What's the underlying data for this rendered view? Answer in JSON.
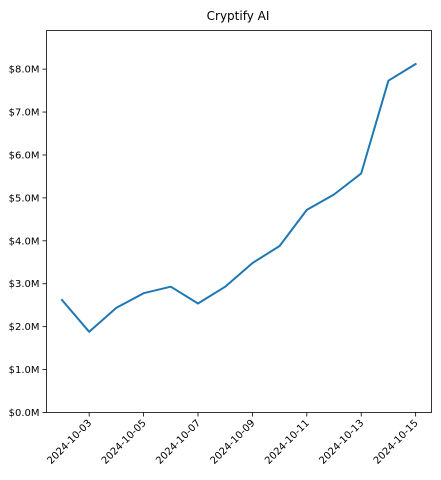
{
  "chart_data": {
    "type": "line",
    "title": "Cryptify AI",
    "xlabel": "",
    "ylabel": "",
    "x": [
      "2024-10-02",
      "2024-10-03",
      "2024-10-04",
      "2024-10-05",
      "2024-10-06",
      "2024-10-07",
      "2024-10-08",
      "2024-10-09",
      "2024-10-10",
      "2024-10-11",
      "2024-10-12",
      "2024-10-13",
      "2024-10-14",
      "2024-10-15"
    ],
    "series": [
      {
        "name": "",
        "values": [
          2.62,
          1.88,
          2.44,
          2.78,
          2.93,
          2.54,
          2.93,
          3.48,
          3.88,
          4.72,
          5.08,
          5.57,
          7.73,
          8.12
        ]
      }
    ],
    "x_tick_labels": [
      "2024-10-03",
      "2024-10-05",
      "2024-10-07",
      "2024-10-09",
      "2024-10-11",
      "2024-10-13",
      "2024-10-15"
    ],
    "y_ticks": [
      0,
      1,
      2,
      3,
      4,
      5,
      6,
      7,
      8
    ],
    "y_tick_labels": [
      "$0.0M",
      "$1.0M",
      "$2.0M",
      "$3.0M",
      "$4.0M",
      "$5.0M",
      "$6.0M",
      "$7.0M",
      "$8.0M"
    ],
    "ylim": [
      0,
      8.9
    ],
    "xlim": [
      "2024-10-01T10:20",
      "2024-10-15T14:00"
    ],
    "grid": false,
    "line_color": "#1f77b4"
  }
}
